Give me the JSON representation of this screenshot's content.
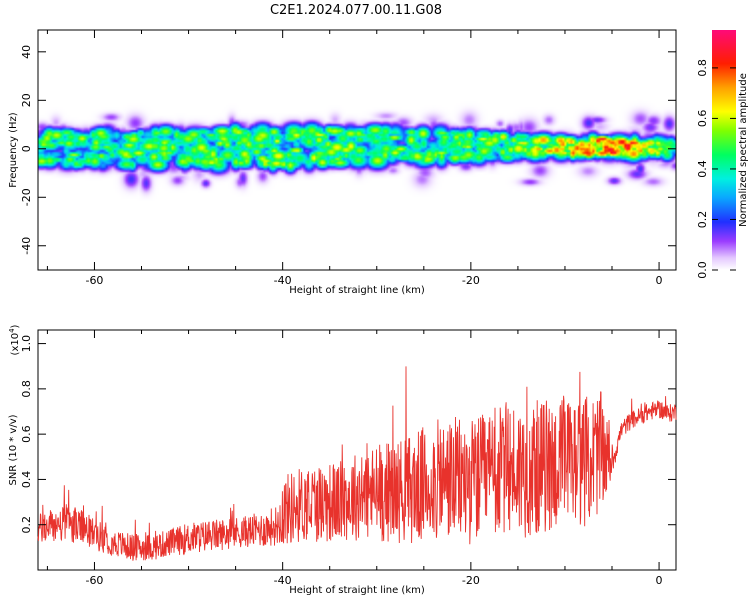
{
  "title": "C2E1.2024.077.00.11.G08",
  "chart_data": [
    {
      "type": "heatmap",
      "title": "C2E1.2024.077.00.11.G08",
      "xlabel": "Height of straight line (km)",
      "ylabel": "Frequency (Hz)",
      "xlim": [
        -66,
        1.8
      ],
      "ylim": [
        -50,
        49
      ],
      "xticks": [
        -60,
        -40,
        -20,
        0
      ],
      "xtick_labels": [
        "-60",
        "-40",
        "-20",
        "0"
      ],
      "yticks": [
        -40,
        -20,
        0,
        20,
        40
      ],
      "ytick_labels": [
        "-40",
        "-20",
        "0",
        "20",
        "40"
      ],
      "colorbar": {
        "label": "Normalized spectral amplitude",
        "range": [
          0,
          0.95
        ],
        "ticks": [
          0.0,
          0.2,
          0.4,
          0.6,
          0.8
        ],
        "tick_labels": [
          "0.0",
          "0.2",
          "0.4",
          "0.6",
          "0.8"
        ]
      },
      "band": {
        "center_frequency_hz": [
          [
            -66,
            0.5
          ],
          [
            -50,
            0.5
          ],
          [
            -30,
            1.5
          ],
          [
            -15,
            1.5
          ],
          [
            -5,
            1.2
          ],
          [
            1.8,
            0.5
          ]
        ],
        "half_width_hz": [
          [
            -66,
            6
          ],
          [
            -40,
            7
          ],
          [
            -20,
            5
          ],
          [
            -10,
            3
          ],
          [
            1.8,
            2.5
          ]
        ],
        "peak_amplitude": [
          [
            -66,
            0.6
          ],
          [
            -40,
            0.65
          ],
          [
            -20,
            0.62
          ],
          [
            -10,
            0.8
          ],
          [
            -4,
            0.95
          ],
          [
            1.8,
            0.5
          ]
        ]
      }
    },
    {
      "type": "line",
      "xlabel": "Height of straight line (km)",
      "ylabel": "SNR (10 * v/v)",
      "y_multiplier_label": "(x10",
      "y_multiplier_exp": "4",
      "y_multiplier_close": ")",
      "xlim": [
        -66,
        1.8
      ],
      "ylim": [
        0,
        1.06
      ],
      "xticks": [
        -60,
        -40,
        -20,
        0
      ],
      "xtick_labels": [
        "-60",
        "-40",
        "-20",
        "0"
      ],
      "yticks": [
        0.2,
        0.4,
        0.6,
        0.8,
        1.0
      ],
      "ytick_labels": [
        "0.2",
        "0.4",
        "0.6",
        "0.8",
        "1.0"
      ],
      "series": [
        {
          "color": "#e8322c",
          "x": [
            -66,
            -64,
            -62,
            -60,
            -58,
            -56,
            -54,
            -52,
            -50,
            -48,
            -46,
            -44,
            -42,
            -40.5,
            -40,
            -38,
            -36,
            -34,
            -32,
            -30,
            -28,
            -26,
            -24,
            -22,
            -20,
            -18,
            -16,
            -14,
            -12,
            -10,
            -8,
            -6,
            -5,
            -4,
            -3,
            -2,
            -1,
            0,
            1,
            1.8
          ],
          "y": [
            0.18,
            0.2,
            0.2,
            0.16,
            0.12,
            0.1,
            0.1,
            0.12,
            0.14,
            0.15,
            0.16,
            0.17,
            0.18,
            0.2,
            0.26,
            0.29,
            0.3,
            0.3,
            0.33,
            0.34,
            0.35,
            0.36,
            0.39,
            0.4,
            0.39,
            0.41,
            0.45,
            0.44,
            0.46,
            0.47,
            0.48,
            0.52,
            0.47,
            0.62,
            0.66,
            0.68,
            0.7,
            0.71,
            0.69,
            0.7
          ],
          "noise_amplitude": [
            0.07,
            0.08,
            0.08,
            0.07,
            0.06,
            0.06,
            0.06,
            0.06,
            0.07,
            0.07,
            0.07,
            0.07,
            0.08,
            0.09,
            0.16,
            0.17,
            0.18,
            0.18,
            0.2,
            0.22,
            0.23,
            0.25,
            0.27,
            0.28,
            0.28,
            0.29,
            0.3,
            0.3,
            0.3,
            0.3,
            0.29,
            0.27,
            0.06,
            0.04,
            0.04,
            0.04,
            0.04,
            0.04,
            0.04,
            0.04
          ]
        }
      ]
    }
  ]
}
